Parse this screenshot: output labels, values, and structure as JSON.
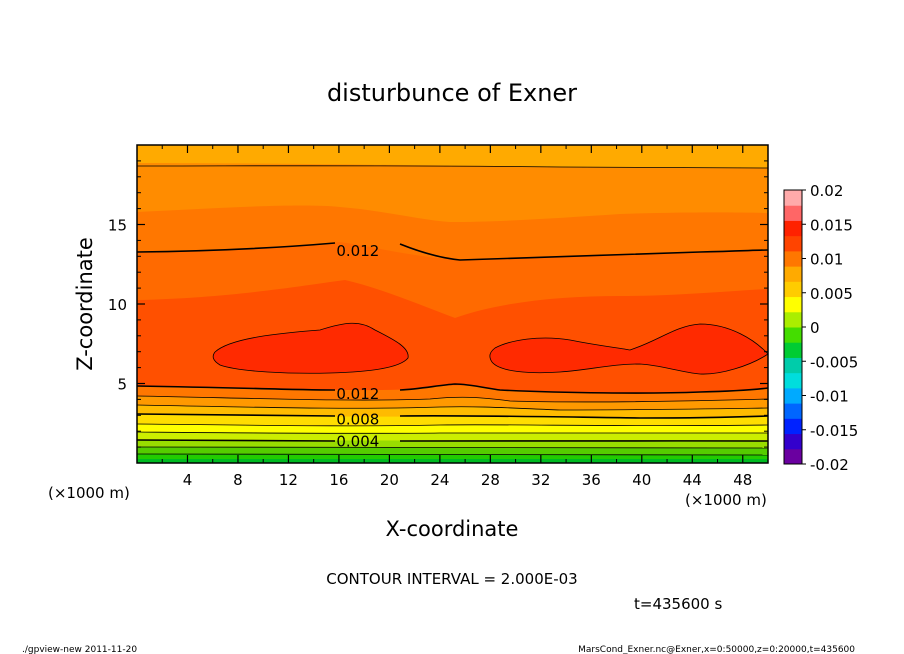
{
  "chart_data": {
    "type": "heatmap",
    "title": "disturbunce of Exner",
    "xlabel": "X-coordinate",
    "ylabel": "Z-coordinate",
    "x_unit": "(×1000 m)",
    "x_ticks": [
      "4",
      "8",
      "12",
      "16",
      "20",
      "24",
      "28",
      "32",
      "36",
      "40",
      "44",
      "48"
    ],
    "y_ticks": [
      "5",
      "10",
      "15"
    ],
    "xlim": [
      0,
      50
    ],
    "ylim": [
      0,
      20
    ],
    "contour_interval_text": "CONTOUR INTERVAL = 2.000E-03",
    "time_text": "t=435600 s",
    "contour_labels": [
      {
        "text": "0.012",
        "x": 17.5,
        "z": 13.4
      },
      {
        "text": "0.012",
        "x": 17.5,
        "z": 4.4
      },
      {
        "text": "0.008",
        "x": 17.5,
        "z": 2.8
      },
      {
        "text": "0.004",
        "x": 17.5,
        "z": 1.4
      }
    ],
    "colorbar": {
      "labels": [
        "0.02",
        "0.015",
        "0.01",
        "0.005",
        "0",
        "-0.005",
        "-0.01",
        "-0.015",
        "-0.02"
      ],
      "range": [
        -0.02,
        0.02
      ],
      "colors": [
        "#6a00a0",
        "#3300cc",
        "#0022ff",
        "#0066ff",
        "#00aaff",
        "#00dddd",
        "#00ccaa",
        "#00cc33",
        "#44dd00",
        "#aaee00",
        "#ffff00",
        "#ffcc00",
        "#ffaa00",
        "#ff7700",
        "#ff4400",
        "#ff2200",
        "#ff6666",
        "#ffaaaa"
      ]
    }
  },
  "footer": {
    "left": "./gpview-new   2011-11-20",
    "right": "MarsCond_Exner.nc@Exner,x=0:50000,z=0:20000,t=435600"
  }
}
